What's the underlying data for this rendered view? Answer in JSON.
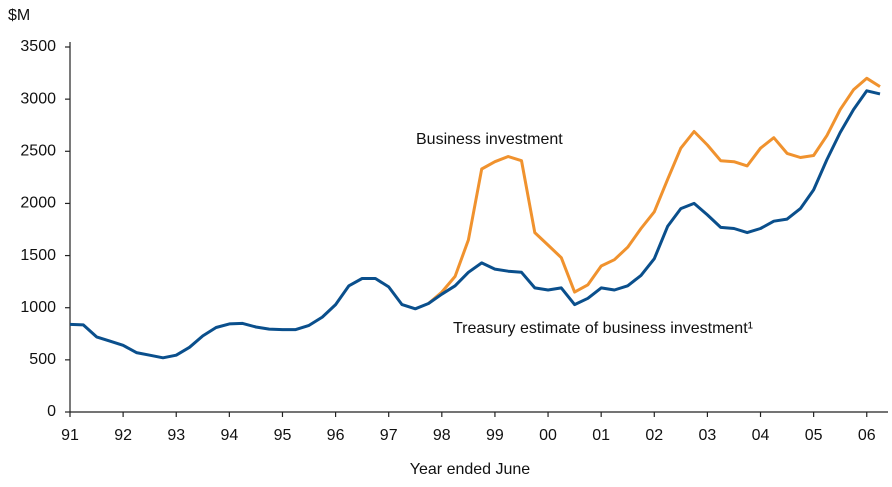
{
  "chart_data": {
    "type": "line",
    "y_unit": "$M",
    "x_label": "Year ended June",
    "annotations": [
      "Business investment",
      "Treasury estimate of business investment¹"
    ],
    "x": [
      1991,
      1991.25,
      1991.5,
      1991.75,
      1992,
      1992.25,
      1992.5,
      1992.75,
      1993,
      1993.25,
      1993.5,
      1993.75,
      1994,
      1994.25,
      1994.5,
      1994.75,
      1995,
      1995.25,
      1995.5,
      1995.75,
      1996,
      1996.25,
      1996.5,
      1996.75,
      1997,
      1997.25,
      1997.5,
      1997.75,
      1998,
      1998.25,
      1998.5,
      1998.75,
      1999,
      1999.25,
      1999.5,
      1999.75,
      2000,
      2000.25,
      2000.5,
      2000.75,
      2001,
      2001.25,
      2001.5,
      2001.75,
      2002,
      2002.25,
      2002.5,
      2002.75,
      2003,
      2003.25,
      2003.5,
      2003.75,
      2004,
      2004.25,
      2004.5,
      2004.75,
      2005,
      2005.25,
      2005.5,
      2005.75,
      2006,
      2006.25
    ],
    "series": [
      {
        "name": "Business investment",
        "color": "#f0922e",
        "values": [
          null,
          null,
          null,
          null,
          null,
          null,
          null,
          null,
          null,
          null,
          null,
          null,
          null,
          null,
          null,
          null,
          null,
          null,
          null,
          null,
          null,
          null,
          null,
          null,
          null,
          null,
          null,
          1040,
          1150,
          1300,
          1650,
          2330,
          2400,
          2450,
          2410,
          1720,
          1600,
          1480,
          1150,
          1220,
          1400,
          1460,
          1580,
          1760,
          1920,
          2230,
          2530,
          2690,
          2560,
          2410,
          2400,
          2360,
          2530,
          2630,
          2480,
          2440,
          2460,
          2650,
          2900,
          3090,
          3200,
          3120
        ]
      },
      {
        "name": "Treasury estimate of business investment¹",
        "color": "#0a4f8c",
        "values": [
          840,
          835,
          720,
          680,
          640,
          570,
          545,
          520,
          545,
          620,
          730,
          810,
          845,
          850,
          815,
          795,
          790,
          790,
          830,
          910,
          1030,
          1210,
          1280,
          1280,
          1200,
          1030,
          990,
          1040,
          1130,
          1210,
          1340,
          1430,
          1370,
          1350,
          1340,
          1190,
          1170,
          1190,
          1030,
          1090,
          1190,
          1170,
          1210,
          1310,
          1470,
          1780,
          1950,
          2000,
          1890,
          1770,
          1760,
          1720,
          1760,
          1830,
          1850,
          1950,
          2130,
          2420,
          2680,
          2900,
          3080,
          3050
        ]
      }
    ],
    "xlim": [
      1991,
      2006.4
    ],
    "xticks": [
      {
        "value": 1991,
        "label": "91"
      },
      {
        "value": 1992,
        "label": "92"
      },
      {
        "value": 1993,
        "label": "93"
      },
      {
        "value": 1994,
        "label": "94"
      },
      {
        "value": 1995,
        "label": "95"
      },
      {
        "value": 1996,
        "label": "96"
      },
      {
        "value": 1997,
        "label": "97"
      },
      {
        "value": 1998,
        "label": "98"
      },
      {
        "value": 1999,
        "label": "99"
      },
      {
        "value": 2000,
        "label": "00"
      },
      {
        "value": 2001,
        "label": "01"
      },
      {
        "value": 2002,
        "label": "02"
      },
      {
        "value": 2003,
        "label": "03"
      },
      {
        "value": 2004,
        "label": "04"
      },
      {
        "value": 2005,
        "label": "05"
      },
      {
        "value": 2006,
        "label": "06"
      }
    ],
    "ylim": [
      0,
      3500
    ],
    "yticks": [
      0,
      500,
      1000,
      1500,
      2000,
      2500,
      3000,
      3500
    ],
    "grid": false
  }
}
